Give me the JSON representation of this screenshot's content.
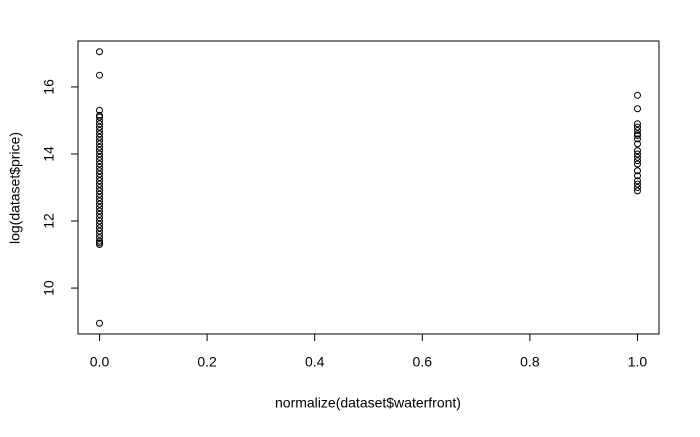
{
  "chart_data": {
    "type": "scatter",
    "xlabel": "normalize(dataset$waterfront)",
    "ylabel": "log(dataset$price)",
    "color": "#000000",
    "x": [
      0,
      0,
      0,
      0,
      0,
      0,
      0,
      0,
      0,
      0,
      0,
      0,
      0,
      0,
      0,
      0,
      0,
      0,
      0,
      0,
      0,
      0,
      0,
      0,
      0,
      0,
      0,
      0,
      0,
      0,
      0,
      0,
      0,
      0,
      0,
      0,
      0,
      0,
      0,
      0,
      0,
      0,
      0,
      0,
      0,
      1,
      1,
      1,
      1,
      1,
      1,
      1,
      1,
      1,
      1,
      1,
      1,
      1,
      1,
      1,
      1,
      1,
      1,
      1,
      1
    ],
    "y": [
      8.95,
      11.3,
      11.35,
      11.4,
      11.5,
      11.6,
      11.7,
      11.8,
      11.9,
      12.0,
      12.1,
      12.2,
      12.3,
      12.4,
      12.5,
      12.6,
      12.7,
      12.8,
      12.9,
      13.0,
      13.1,
      13.2,
      13.3,
      13.4,
      13.5,
      13.6,
      13.7,
      13.8,
      13.9,
      14.0,
      14.1,
      14.2,
      14.3,
      14.4,
      14.5,
      14.6,
      14.7,
      14.8,
      14.9,
      15.0,
      15.1,
      15.15,
      15.3,
      16.35,
      17.05,
      15.75,
      15.35,
      14.9,
      14.8,
      14.7,
      14.6,
      14.55,
      14.45,
      14.3,
      14.1,
      14.0,
      13.9,
      13.8,
      13.7,
      13.5,
      13.35,
      13.2,
      13.1,
      13.0,
      12.9
    ],
    "xlim": [
      -0.04,
      1.04
    ],
    "ylim": [
      8.63,
      17.37
    ],
    "xticks": [
      {
        "value": 0,
        "label": "0.0"
      },
      0.2,
      0.4,
      0.6,
      0.8,
      {
        "value": 1,
        "label": "1.0"
      }
    ],
    "yticks": [
      10,
      12,
      14,
      16
    ]
  }
}
